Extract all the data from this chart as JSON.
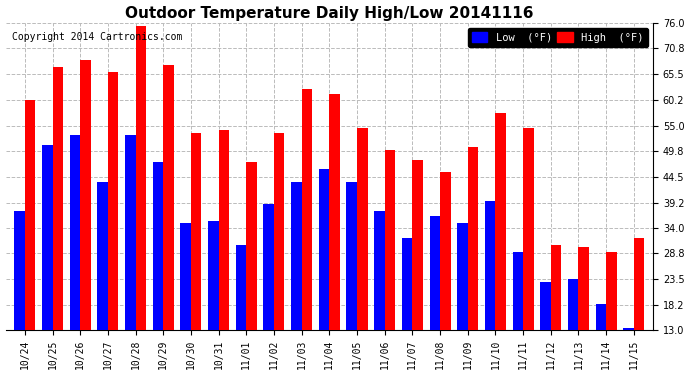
{
  "title": "Outdoor Temperature Daily High/Low 20141116",
  "copyright": "Copyright 2014 Cartronics.com",
  "legend_low": "Low  (°F)",
  "legend_high": "High  (°F)",
  "dates": [
    "10/24",
    "10/25",
    "10/26",
    "10/27",
    "10/28",
    "10/29",
    "10/30",
    "10/31",
    "11/01",
    "11/02",
    "11/03",
    "11/04",
    "11/05",
    "11/06",
    "11/07",
    "11/08",
    "11/09",
    "11/10",
    "11/11",
    "11/12",
    "11/13",
    "11/14",
    "11/15"
  ],
  "high": [
    60.2,
    67.0,
    68.5,
    66.0,
    75.5,
    67.5,
    53.5,
    54.0,
    47.5,
    53.5,
    62.5,
    61.5,
    54.5,
    50.0,
    48.0,
    45.5,
    50.5,
    57.5,
    54.5,
    30.5,
    30.0,
    29.0,
    32.0
  ],
  "low": [
    37.5,
    51.0,
    53.0,
    43.5,
    53.0,
    47.5,
    35.0,
    35.5,
    30.5,
    39.0,
    43.5,
    46.0,
    43.5,
    37.5,
    32.0,
    36.5,
    35.0,
    39.5,
    29.0,
    23.0,
    23.5,
    18.5,
    13.5
  ],
  "yticks": [
    13.0,
    18.2,
    23.5,
    28.8,
    34.0,
    39.2,
    44.5,
    49.8,
    55.0,
    60.2,
    65.5,
    70.8,
    76.0
  ],
  "ymin": 13.0,
  "ymax": 76.0,
  "bar_width": 0.38,
  "low_color": "#0000ff",
  "high_color": "#ff0000",
  "bg_color": "#ffffff",
  "grid_color": "#bbbbbb",
  "title_fontsize": 11,
  "copyright_fontsize": 7,
  "tick_fontsize": 7
}
